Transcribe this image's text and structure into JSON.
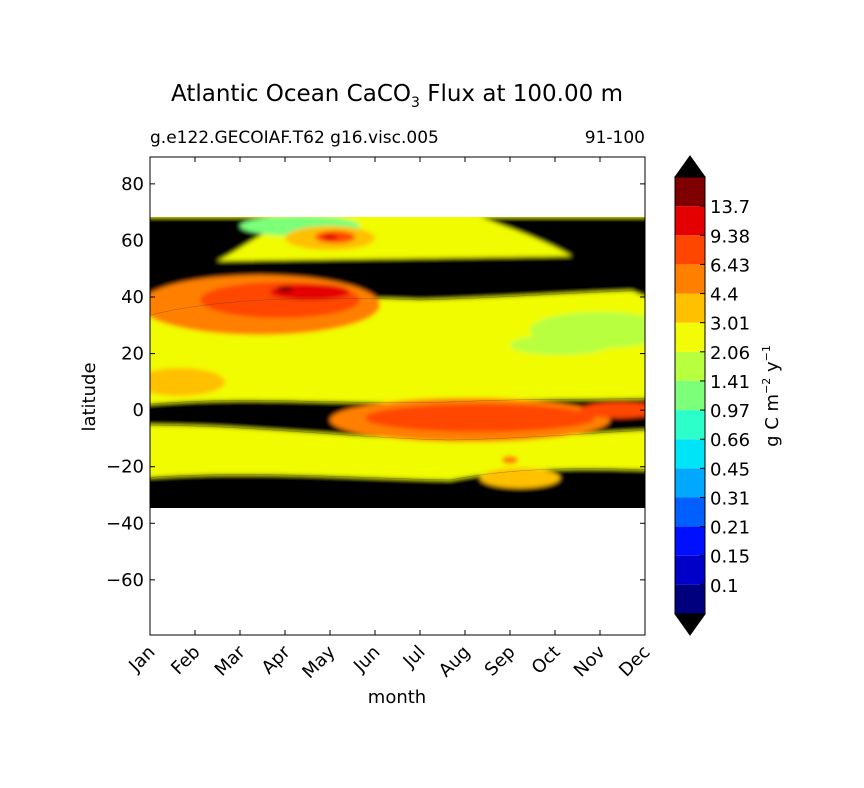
{
  "chart_data": {
    "type": "contour",
    "title_main": "Atlantic Ocean CaCO",
    "title_sub": "3",
    "title_tail": " Flux at 100.00 m",
    "subtitle_left": "g.e122.GECOIAF.T62 g16.visc.005",
    "subtitle_right": "91-100",
    "xlabel": "month",
    "ylabel": "latitude",
    "x_ticks": [
      "Jan",
      "Feb",
      "Mar",
      "Apr",
      "May",
      "Jun",
      "Jul",
      "Aug",
      "Sep",
      "Oct",
      "Nov",
      "Dec"
    ],
    "y_ticks": [
      80,
      60,
      40,
      20,
      0,
      -20,
      -40,
      -60
    ],
    "y_tick_labels": [
      "80",
      "60",
      "40",
      "20",
      "0",
      "−20",
      "−40",
      "−60"
    ],
    "ylim": [
      -79.5,
      89.5
    ],
    "data_lat_range": [
      -34,
      69
    ],
    "colorbar": {
      "label": "g C m",
      "label_sup1": "−2",
      "label_mid": " y",
      "label_sup2": "−1",
      "levels": [
        "0.1",
        "0.15",
        "0.21",
        "0.31",
        "0.45",
        "0.66",
        "0.97",
        "1.41",
        "2.06",
        "3.01",
        "4.4",
        "6.43",
        "9.38",
        "13.7"
      ],
      "colors": [
        "#00007f",
        "#0000c8",
        "#0010ff",
        "#0060ff",
        "#00a8ff",
        "#00e4f8",
        "#2dffca",
        "#7cff79",
        "#b8ff3f",
        "#f1fc06",
        "#ffc000",
        "#ff8000",
        "#ff4600",
        "#e40000",
        "#7f0000"
      ],
      "over_color": "#000000",
      "under_color": "#000000"
    }
  }
}
